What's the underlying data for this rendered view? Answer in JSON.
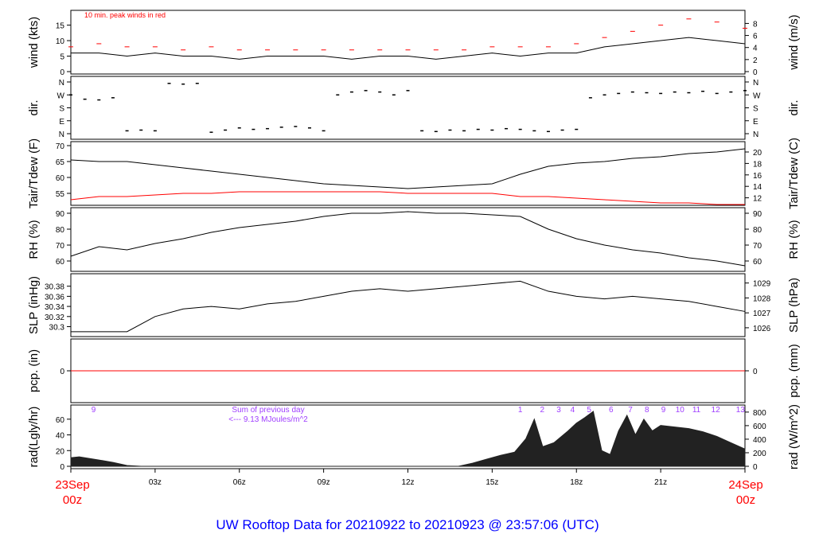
{
  "title": "UW Rooftop Data for 20210922  to  20210923 @ 23:57:06  (UTC)",
  "x_axis": {
    "start_label": [
      "23Sep",
      "00z"
    ],
    "end_label": [
      "24Sep",
      "00z"
    ],
    "ticks": [
      {
        "h": 3,
        "label": "03z"
      },
      {
        "h": 6,
        "label": "06z"
      },
      {
        "h": 9,
        "label": "09z"
      },
      {
        "h": 12,
        "label": "12z"
      },
      {
        "h": 15,
        "label": "15z"
      },
      {
        "h": 18,
        "label": "18z"
      },
      {
        "h": 21,
        "label": "21z"
      }
    ],
    "range_hours": [
      0,
      24
    ]
  },
  "colors": {
    "main": "#000000",
    "peak": "#ff0000",
    "dew": "#ff0000",
    "pcp": "#ff0000",
    "rad_labels": "#a040ff",
    "title": "#0000ff",
    "date": "#ff0000"
  },
  "chart_data": [
    {
      "type": "line",
      "ylabel": "wind (kts)",
      "ylabel_right": "wind (m/s)",
      "ylim": [
        0,
        19
      ],
      "yticks": [
        0,
        5,
        10,
        15
      ],
      "right_ylim": [
        0,
        9.77
      ],
      "right_ticks": [
        0,
        2,
        4,
        6,
        8
      ],
      "note": "10 min. peak winds in red",
      "x": [
        0,
        1,
        2,
        3,
        4,
        5,
        6,
        7,
        8,
        9,
        10,
        11,
        12,
        13,
        14,
        15,
        16,
        17,
        18,
        19,
        20,
        21,
        22,
        23,
        24
      ],
      "series": [
        {
          "values": [
            6,
            6,
            5,
            6,
            5,
            5,
            4,
            5,
            5,
            5,
            4,
            5,
            5,
            4,
            5,
            6,
            5,
            6,
            6,
            8,
            9,
            10,
            11,
            10,
            9
          ]
        },
        {
          "name": "10 min. peak winds",
          "values": [
            8,
            9,
            8,
            8,
            7,
            8,
            7,
            7,
            7,
            7,
            7,
            7,
            7,
            7,
            7,
            8,
            8,
            8,
            9,
            11,
            13,
            15,
            17,
            16,
            14
          ]
        }
      ]
    },
    {
      "type": "scatter",
      "ylabel": "dir.",
      "ylim": [
        0,
        360
      ],
      "ytick_labels": [
        "N",
        "E",
        "S",
        "W",
        "N"
      ],
      "x": [
        0,
        0.5,
        1,
        1.5,
        2,
        2.5,
        3,
        3.5,
        4,
        4.5,
        5,
        5.5,
        6,
        6.5,
        7,
        7.5,
        8,
        8.5,
        9,
        9.5,
        10,
        10.5,
        11,
        11.5,
        12,
        12.5,
        13,
        13.5,
        14,
        14.5,
        15,
        15.5,
        16,
        16.5,
        17,
        17.5,
        18,
        18.5,
        19,
        19.5,
        20,
        20.5,
        21,
        21.5,
        22,
        22.5,
        23,
        23.5,
        24
      ],
      "values": [
        270,
        240,
        235,
        250,
        20,
        25,
        20,
        350,
        345,
        350,
        10,
        25,
        40,
        30,
        35,
        45,
        50,
        40,
        20,
        270,
        290,
        300,
        290,
        270,
        300,
        20,
        15,
        25,
        20,
        30,
        25,
        35,
        30,
        20,
        15,
        25,
        30,
        250,
        270,
        280,
        290,
        285,
        280,
        290,
        285,
        295,
        280,
        290,
        300
      ]
    },
    {
      "type": "line",
      "ylabel": "Tair/Tdew (F)",
      "ylabel_right": "Tair/Tdew (C)",
      "ylim": [
        52,
        70.5
      ],
      "yticks": [
        55,
        60,
        65,
        70
      ],
      "right_ticks": [
        12,
        14,
        16,
        18,
        20
      ],
      "x": [
        0,
        1,
        2,
        3,
        4,
        5,
        6,
        7,
        8,
        9,
        10,
        11,
        12,
        13,
        14,
        15,
        16,
        17,
        18,
        19,
        20,
        21,
        22,
        23,
        24
      ],
      "series": [
        {
          "name": "Tair",
          "values": [
            65.5,
            65,
            65,
            64,
            63,
            62,
            61,
            60,
            59,
            58,
            57.5,
            57,
            56.5,
            57,
            57.5,
            58,
            61,
            63.5,
            64.5,
            65,
            66,
            66.5,
            67.5,
            68,
            69
          ]
        },
        {
          "name": "Tdew",
          "values": [
            53,
            54,
            54,
            54.5,
            55,
            55,
            55.5,
            55.5,
            55.5,
            55.5,
            55.5,
            55.5,
            55,
            55,
            55,
            55,
            54,
            54,
            53.5,
            53,
            52.5,
            52,
            52,
            51.5,
            51.5
          ]
        }
      ]
    },
    {
      "type": "line",
      "ylabel": "RH (%)",
      "ylabel_right": "RH (%)",
      "ylim": [
        55,
        92
      ],
      "yticks": [
        60,
        70,
        80,
        90
      ],
      "x": [
        0,
        1,
        2,
        3,
        4,
        5,
        6,
        7,
        8,
        9,
        10,
        11,
        12,
        13,
        14,
        15,
        16,
        17,
        18,
        19,
        20,
        21,
        22,
        23,
        24
      ],
      "series": [
        {
          "values": [
            63,
            69,
            67,
            71,
            74,
            78,
            81,
            83,
            85,
            88,
            90,
            90,
            91,
            90,
            90,
            89,
            88,
            80,
            74,
            70,
            67,
            65,
            62,
            60,
            57
          ]
        }
      ]
    },
    {
      "type": "line",
      "ylabel": "SLP (inHg)",
      "ylabel_right": "SLP (hPa)",
      "ylim": [
        30.285,
        30.4
      ],
      "yticks": [
        30.3,
        30.32,
        30.34,
        30.36,
        30.38
      ],
      "right_ticks": [
        1026,
        1027,
        1028,
        1029
      ],
      "x": [
        0,
        1,
        2,
        3,
        4,
        5,
        6,
        7,
        8,
        9,
        10,
        11,
        12,
        13,
        14,
        15,
        16,
        17,
        18,
        19,
        20,
        21,
        22,
        23,
        24
      ],
      "series": [
        {
          "values": [
            30.29,
            30.29,
            30.29,
            30.32,
            30.335,
            30.34,
            30.335,
            30.345,
            30.35,
            30.36,
            30.37,
            30.375,
            30.37,
            30.375,
            30.38,
            30.385,
            30.39,
            30.37,
            30.36,
            30.355,
            30.36,
            30.355,
            30.35,
            30.34,
            30.33
          ]
        }
      ]
    },
    {
      "type": "line",
      "ylabel": "pcp. (in)",
      "ylabel_right": "pcp. (mm)",
      "ylim": [
        -1,
        1
      ],
      "yticks": [
        0
      ],
      "right_ticks": [
        0
      ],
      "x": [
        0,
        24
      ],
      "series": [
        {
          "values": [
            0,
            0
          ]
        }
      ]
    },
    {
      "type": "area",
      "ylabel": "rad(Lgly/hr)",
      "ylabel_right": "rad (W/m^2)",
      "ylim": [
        0,
        75
      ],
      "yticks": [
        0,
        20,
        40,
        60
      ],
      "right_ticks": [
        0,
        200,
        400,
        600,
        800
      ],
      "x": [
        0,
        0.3,
        1,
        1.5,
        2,
        2.5,
        13.8,
        14.3,
        14.8,
        15.3,
        15.8,
        16.2,
        16.5,
        16.8,
        17.2,
        17.7,
        18,
        18.3,
        18.6,
        18.9,
        19.2,
        19.5,
        19.8,
        20.1,
        20.4,
        20.7,
        21,
        21.5,
        22,
        22.5,
        23,
        23.5,
        24
      ],
      "values": [
        11,
        12,
        8,
        5,
        1,
        0,
        0,
        4,
        9,
        14,
        18,
        35,
        60,
        25,
        30,
        45,
        55,
        62,
        70,
        20,
        15,
        45,
        65,
        40,
        60,
        45,
        52,
        50,
        48,
        44,
        38,
        30,
        22
      ],
      "annotation": [
        "Sum of previous day",
        "<--- 9.13 MJoules/m^2"
      ],
      "hour_labels": [
        {
          "h": 1,
          "label": "9"
        },
        {
          "h": 16.5,
          "label": "1"
        },
        {
          "h": 17.3,
          "label": "2"
        },
        {
          "h": 17.9,
          "label": "3"
        },
        {
          "h": 18.4,
          "label": "4"
        },
        {
          "h": 19.0,
          "label": "5"
        },
        {
          "h": 19.8,
          "label": "6"
        },
        {
          "h": 20.5,
          "label": "7"
        },
        {
          "h": 21.1,
          "label": "8"
        },
        {
          "h": 21.7,
          "label": "9"
        },
        {
          "h": 22.3,
          "label": "10"
        },
        {
          "h": 22.9,
          "label": "11"
        },
        {
          "h": 23.6,
          "label": "12"
        },
        {
          "h": 24.5,
          "label": "13"
        }
      ]
    }
  ]
}
